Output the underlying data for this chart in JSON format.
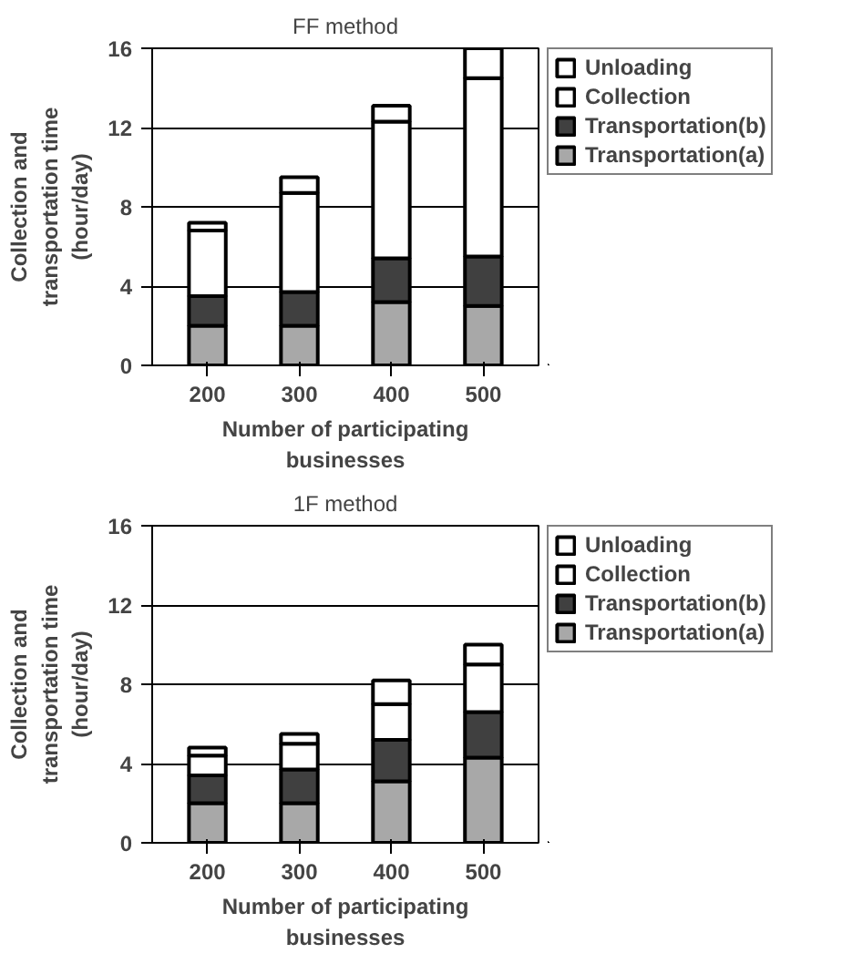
{
  "chart_data": [
    {
      "type": "bar",
      "title": "FF method",
      "xlabel": "Number of participating businesses",
      "ylabel": "Collection and transportation time (hour/day)",
      "categories": [
        "200",
        "300",
        "400",
        "500"
      ],
      "stacked": true,
      "ylim": [
        0,
        16
      ],
      "yticks": [
        0,
        4,
        8,
        12,
        16
      ],
      "grid": "y",
      "legend": "right",
      "series": [
        {
          "name": "Transportation(a)",
          "color": "#a8a8a8",
          "values": [
            2.0,
            2.0,
            3.2,
            3.0
          ]
        },
        {
          "name": "Transportation(b)",
          "color": "#404040",
          "values": [
            1.5,
            1.7,
            2.2,
            2.5
          ]
        },
        {
          "name": "Collection",
          "color": "#ffffff",
          "values": [
            3.3,
            5.0,
            6.9,
            9.0
          ]
        },
        {
          "name": "Unloading",
          "color": "#ffffff",
          "values": [
            0.4,
            0.8,
            0.8,
            1.5
          ]
        }
      ]
    },
    {
      "type": "bar",
      "title": "1F method",
      "xlabel": "Number of participating businesses",
      "ylabel": "Collection and transportation time (hour/day)",
      "categories": [
        "200",
        "300",
        "400",
        "500"
      ],
      "stacked": true,
      "ylim": [
        0,
        16
      ],
      "yticks": [
        0,
        4,
        8,
        12,
        16
      ],
      "grid": "y",
      "legend": "right",
      "series": [
        {
          "name": "Transportation(a)",
          "color": "#a8a8a8",
          "values": [
            2.0,
            2.0,
            3.1,
            4.3
          ]
        },
        {
          "name": "Transportation(b)",
          "color": "#404040",
          "values": [
            1.4,
            1.7,
            2.1,
            2.3
          ]
        },
        {
          "name": "Collection",
          "color": "#ffffff",
          "values": [
            1.0,
            1.3,
            1.8,
            2.4
          ]
        },
        {
          "name": "Unloading",
          "color": "#ffffff",
          "values": [
            0.4,
            0.5,
            1.2,
            1.0
          ]
        }
      ]
    }
  ]
}
